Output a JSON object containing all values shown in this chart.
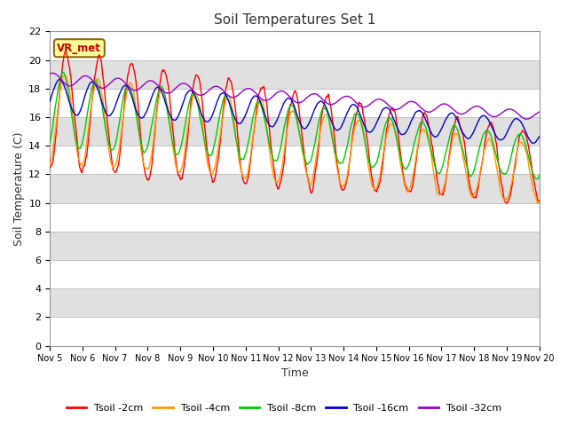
{
  "title": "Soil Temperatures Set 1",
  "xlabel": "Time",
  "ylabel": "Soil Temperature (C)",
  "ylim": [
    0,
    22
  ],
  "background_color": "#ffffff",
  "plot_bg_color": "#e8e8e8",
  "label_box": "VR_met",
  "label_box_bg": "#ffff99",
  "label_box_border": "#8b6914",
  "label_box_text": "#cc0000",
  "xtick_labels": [
    "Nov 5",
    "Nov 6",
    "Nov 7",
    "Nov 8",
    "Nov 9",
    "Nov 10",
    "Nov 11",
    "Nov 12",
    "Nov 13",
    "Nov 14",
    "Nov 15",
    "Nov 16",
    "Nov 17",
    "Nov 18",
    "Nov 19",
    "Nov 20"
  ],
  "line_colors": [
    "#ff0000",
    "#ff9900",
    "#00cc00",
    "#0000cc",
    "#9900cc"
  ],
  "line_labels": [
    "Tsoil -2cm",
    "Tsoil -4cm",
    "Tsoil -8cm",
    "Tsoil -16cm",
    "Tsoil -32cm"
  ],
  "ytick_step": 2,
  "band_colors": [
    "#ffffff",
    "#e0e0e0"
  ]
}
